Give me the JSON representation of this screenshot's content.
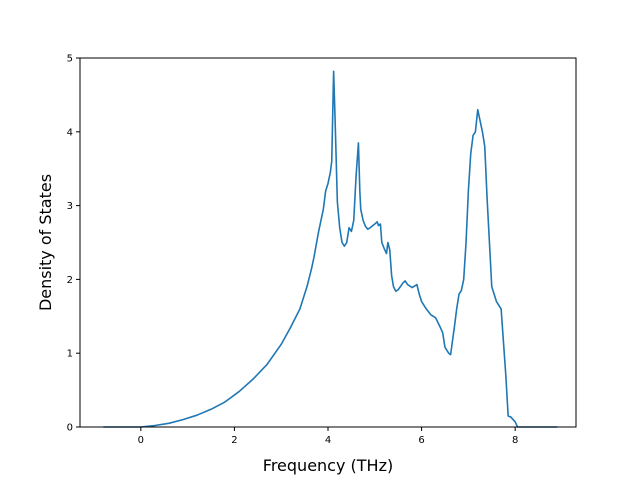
{
  "chart_data": {
    "type": "line",
    "title": "",
    "xlabel": "Frequency (THz)",
    "ylabel": "Density of States",
    "xlim": [
      -1.3,
      9.3
    ],
    "ylim": [
      0,
      5
    ],
    "xticks": [
      0,
      2,
      4,
      6,
      8
    ],
    "yticks": [
      0,
      1,
      2,
      3,
      4,
      5
    ],
    "grid": false,
    "legend": "none",
    "line_color": "#1f77b4",
    "series": [
      {
        "x": [
          -0.8,
          0.0,
          0.3,
          0.6,
          0.9,
          1.2,
          1.5,
          1.8,
          2.1,
          2.4,
          2.7,
          3.0,
          3.2,
          3.4,
          3.55,
          3.65,
          3.7,
          3.8,
          3.85,
          3.9,
          3.95,
          4.0,
          4.05,
          4.08,
          4.12,
          4.15,
          4.2,
          4.25,
          4.3,
          4.35,
          4.4,
          4.45,
          4.5,
          4.55,
          4.6,
          4.65,
          4.68,
          4.7,
          4.75,
          4.8,
          4.85,
          4.9,
          5.0,
          5.05,
          5.08,
          5.12,
          5.15,
          5.2,
          5.25,
          5.28,
          5.32,
          5.36,
          5.4,
          5.45,
          5.5,
          5.6,
          5.65,
          5.7,
          5.8,
          5.9,
          5.95,
          6.0,
          6.1,
          6.2,
          6.3,
          6.4,
          6.45,
          6.5,
          6.58,
          6.62,
          6.7,
          6.75,
          6.8,
          6.85,
          6.9,
          6.95,
          7.0,
          7.05,
          7.1,
          7.15,
          7.2,
          7.3,
          7.35,
          7.4,
          7.5,
          7.6,
          7.7,
          7.8,
          7.85,
          7.88,
          7.9,
          8.0,
          8.05,
          8.5,
          8.9
        ],
        "y": [
          0.0,
          0.0,
          0.02,
          0.05,
          0.1,
          0.16,
          0.24,
          0.34,
          0.48,
          0.65,
          0.85,
          1.12,
          1.35,
          1.6,
          1.9,
          2.15,
          2.3,
          2.65,
          2.8,
          2.95,
          3.2,
          3.3,
          3.45,
          3.6,
          4.82,
          4.2,
          3.05,
          2.7,
          2.5,
          2.45,
          2.5,
          2.7,
          2.65,
          2.8,
          3.4,
          3.85,
          3.2,
          2.95,
          2.8,
          2.72,
          2.68,
          2.7,
          2.75,
          2.78,
          2.73,
          2.75,
          2.5,
          2.42,
          2.35,
          2.5,
          2.4,
          2.05,
          1.9,
          1.84,
          1.86,
          1.95,
          1.98,
          1.93,
          1.89,
          1.93,
          1.8,
          1.7,
          1.6,
          1.52,
          1.48,
          1.35,
          1.28,
          1.08,
          1.0,
          0.98,
          1.35,
          1.6,
          1.8,
          1.85,
          2.0,
          2.5,
          3.2,
          3.7,
          3.95,
          4.0,
          4.3,
          4.0,
          3.8,
          3.1,
          1.9,
          1.7,
          1.6,
          0.7,
          0.15,
          0.14,
          0.14,
          0.07,
          0.0,
          0.0,
          0.0
        ]
      }
    ]
  }
}
